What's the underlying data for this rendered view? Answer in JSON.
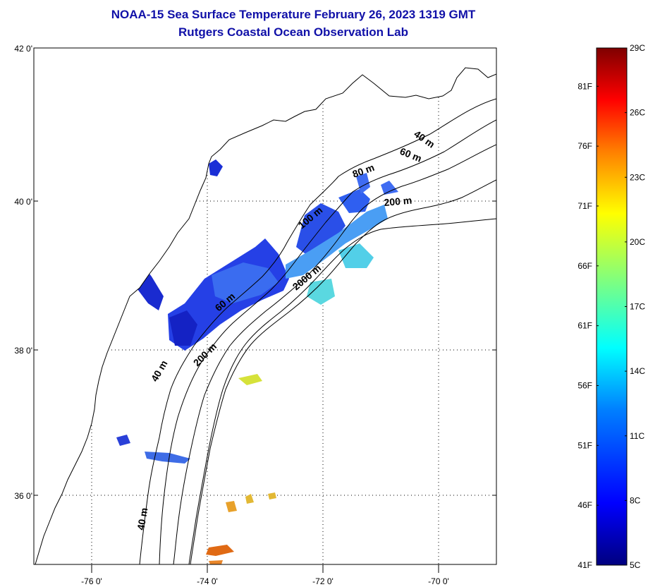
{
  "header": {
    "title_line1": "NOAA-15 Sea Surface Temperature February 26, 2023 1319 GMT",
    "title_line2": "Rutgers Coastal Ocean Observation Lab",
    "color": "#1010a8"
  },
  "map": {
    "lat_ticks": [
      {
        "value": 42,
        "label": "42 0'"
      },
      {
        "value": 40,
        "label": "40 0'"
      },
      {
        "value": 38,
        "label": "38 0'"
      },
      {
        "value": 36,
        "label": "36 0'"
      }
    ],
    "lon_ticks": [
      {
        "value": -76,
        "label": "-76 0'"
      },
      {
        "value": -74,
        "label": "-74 0'"
      },
      {
        "value": -72,
        "label": "-72 0'"
      },
      {
        "value": -70,
        "label": "-70 0'"
      }
    ],
    "lat_range": [
      35,
      42
    ],
    "lon_range": [
      -77,
      -69
    ],
    "grid": "dotted",
    "land_color": "#ffffff",
    "coastline_color": "#000000",
    "contour_labels": [
      "40 m",
      "60 m",
      "80 m",
      "100 m",
      "200 m",
      "2000 m",
      "60 m",
      "200 m",
      "40 m",
      "40 m"
    ]
  },
  "colorbar": {
    "celsius_labels": [
      "29C",
      "26C",
      "23C",
      "20C",
      "17C",
      "14C",
      "11C",
      "8C",
      "5C"
    ],
    "fahrenheit_labels": [
      "81F",
      "76F",
      "71F",
      "66F",
      "61F",
      "56F",
      "51F",
      "46F",
      "41F"
    ],
    "celsius_range": [
      5,
      29
    ],
    "colors": [
      "#00007f",
      "#0000ff",
      "#007fff",
      "#00ffff",
      "#7fff7f",
      "#ffff00",
      "#ff7f00",
      "#ff0000",
      "#7f0000"
    ]
  }
}
